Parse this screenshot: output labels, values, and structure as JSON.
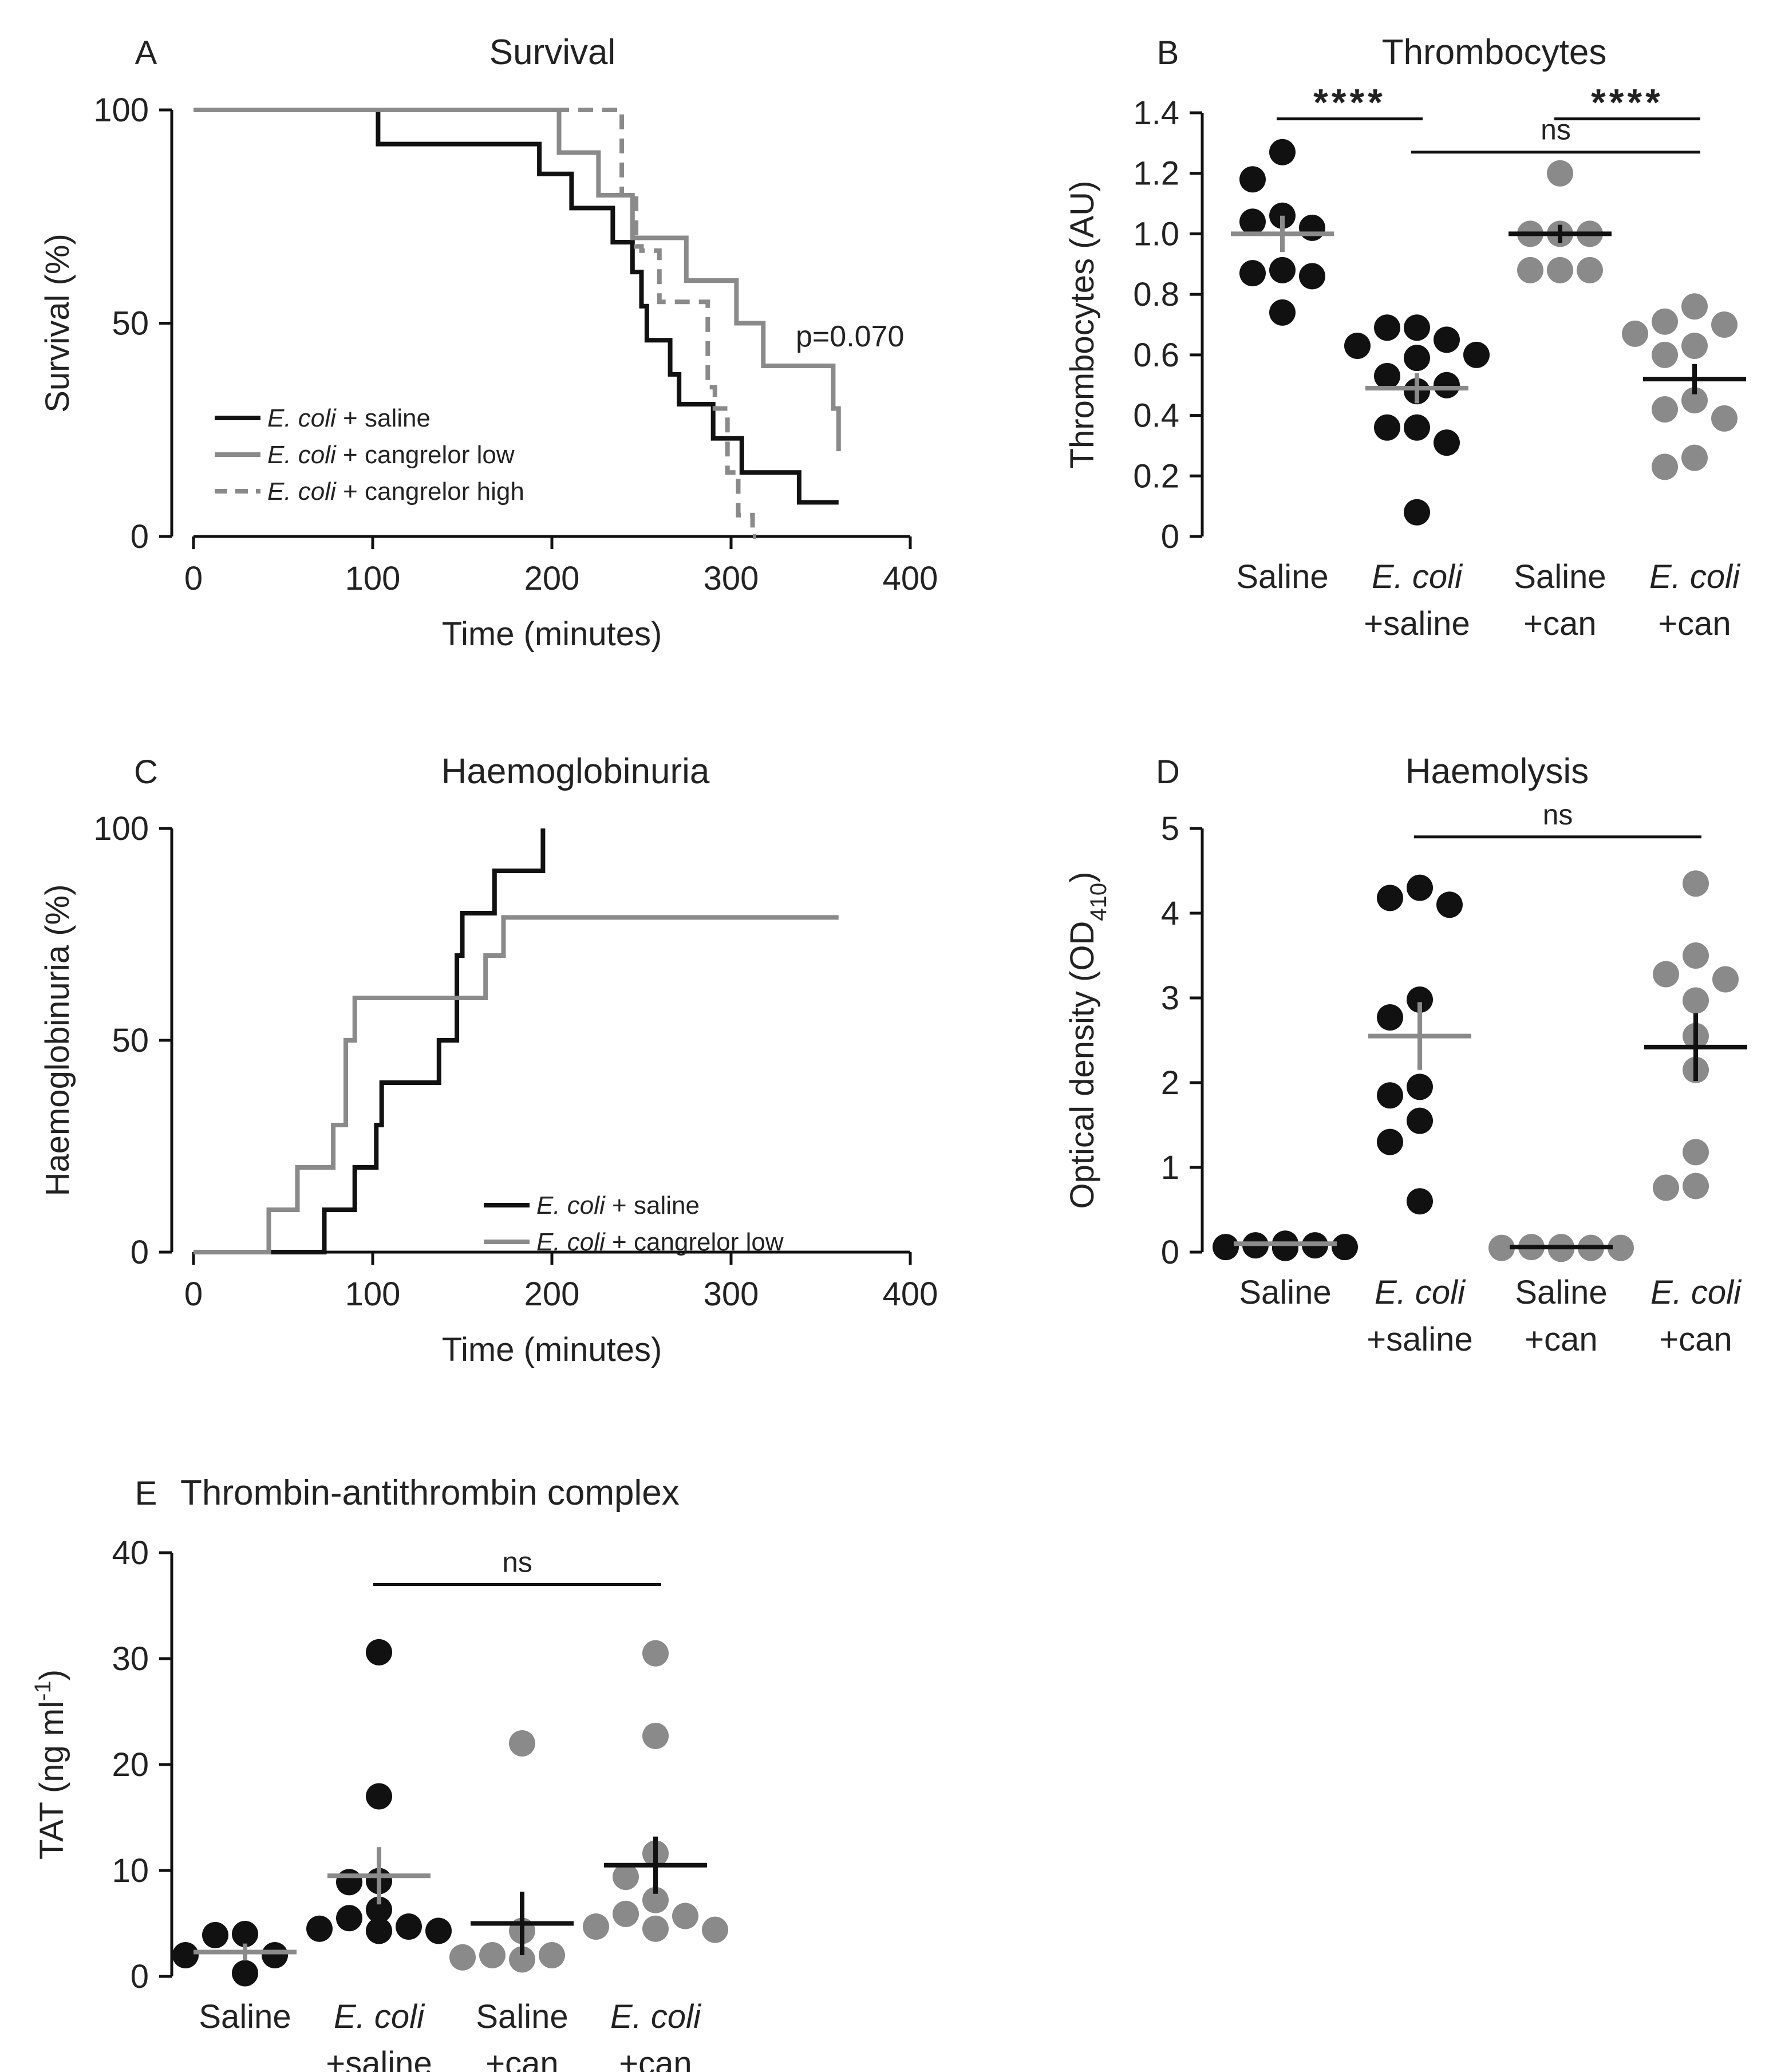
{
  "colors": {
    "black": "#111111",
    "grey": "#8a8a8a"
  },
  "chart_data": [
    {
      "id": "A",
      "letter": "A",
      "title": "Survival",
      "type": "line",
      "xlabel": "Time (minutes)",
      "ylabel": "Survival (%)",
      "xlim": [
        0,
        400
      ],
      "ylim": [
        0,
        100
      ],
      "xticks": [
        "0",
        "100",
        "200",
        "300",
        "400"
      ],
      "yticks": [
        "0",
        "50",
        "100"
      ],
      "annotation": "p=0.070",
      "legend_loc": "bottom-left",
      "series": [
        {
          "name_italic": "E. coli",
          "name_rest": " + saline",
          "color": "black",
          "dash": false,
          "x": [
            0,
            103,
            103,
            193,
            193,
            211,
            211,
            234,
            234,
            245,
            245,
            250,
            250,
            253,
            253,
            266,
            266,
            271,
            271,
            290,
            290,
            306,
            306,
            338,
            338,
            360
          ],
          "y": [
            100,
            100,
            92,
            92,
            85,
            85,
            77,
            77,
            69,
            69,
            62,
            62,
            54,
            54,
            46,
            46,
            38,
            38,
            31,
            31,
            23,
            23,
            15,
            15,
            8,
            8
          ]
        },
        {
          "name_italic": "E. coli",
          "name_rest": " + cangrelor low",
          "color": "grey",
          "dash": false,
          "x": [
            0,
            204,
            204,
            226,
            226,
            245,
            245,
            275,
            275,
            303,
            303,
            318,
            318,
            326,
            326,
            357,
            357,
            360,
            360
          ],
          "y": [
            100,
            100,
            90,
            90,
            80,
            80,
            70,
            70,
            60,
            60,
            50,
            50,
            40,
            40,
            40,
            40,
            30,
            30,
            20
          ]
        },
        {
          "name_italic": "E. coli",
          "name_rest": " + cangrelor high",
          "color": "grey",
          "dash": true,
          "x": [
            0,
            239,
            239,
            247,
            247,
            250,
            250,
            260,
            260,
            265,
            265,
            287,
            287,
            291,
            291,
            298,
            298,
            304,
            304,
            312,
            312,
            314
          ],
          "y": [
            100,
            100,
            80,
            80,
            68,
            68,
            67,
            67,
            55,
            55,
            55,
            55,
            35,
            35,
            30,
            30,
            15,
            15,
            5,
            5,
            0,
            0
          ]
        }
      ]
    },
    {
      "id": "B",
      "letter": "B",
      "title": "Thrombocytes",
      "type": "scatter",
      "ylabel": "Thrombocytes (AU)",
      "ylim": [
        0,
        1.4
      ],
      "yticks": [
        "0",
        "0.2",
        "0.4",
        "0.6",
        "0.8",
        "1.0",
        "1.2",
        "1.4"
      ],
      "categories": [
        {
          "italic": "",
          "rest": "Saline",
          "line2": ""
        },
        {
          "italic": "E. coli",
          "rest": "",
          "line2": "+saline"
        },
        {
          "italic": "",
          "rest": "Saline",
          "line2": "+can"
        },
        {
          "italic": "E. coli",
          "rest": "",
          "line2": "+can"
        }
      ],
      "groups": [
        {
          "color": "black",
          "bar_color": "grey",
          "mean": 1.0,
          "sem": 0.06,
          "points": [
            1.27,
            1.18,
            1.06,
            1.04,
            1.02,
            0.88,
            0.87,
            0.86,
            0.74
          ]
        },
        {
          "color": "black",
          "bar_color": "grey",
          "mean": 0.49,
          "sem": 0.05,
          "points": [
            0.69,
            0.69,
            0.65,
            0.63,
            0.6,
            0.59,
            0.53,
            0.5,
            0.48,
            0.36,
            0.36,
            0.31,
            0.08
          ]
        },
        {
          "color": "grey",
          "bar_color": "black",
          "mean": 1.0,
          "sem": 0.03,
          "points": [
            1.2,
            1.0,
            1.0,
            1.0,
            0.88,
            0.88,
            0.88
          ]
        },
        {
          "color": "grey",
          "bar_color": "black",
          "mean": 0.52,
          "sem": 0.05,
          "points": [
            0.76,
            0.71,
            0.7,
            0.67,
            0.63,
            0.6,
            0.45,
            0.42,
            0.39,
            0.26,
            0.23
          ]
        }
      ],
      "comparisons": [
        {
          "from": 0,
          "to": 1,
          "label": "****",
          "y": 1.38,
          "style": "sig"
        },
        {
          "from": 1,
          "to": 3,
          "label": "ns",
          "y": 1.27,
          "style": "ns"
        },
        {
          "from": 2,
          "to": 3,
          "label": "****",
          "y": 1.38,
          "style": "sig"
        }
      ]
    },
    {
      "id": "C",
      "letter": "C",
      "title": "Haemoglobinuria",
      "type": "line",
      "xlabel": "Time (minutes)",
      "ylabel": "Haemoglobinuria (%)",
      "xlim": [
        0,
        400
      ],
      "ylim": [
        0,
        100
      ],
      "xticks": [
        "0",
        "100",
        "200",
        "300",
        "400"
      ],
      "yticks": [
        "0",
        "50",
        "100"
      ],
      "legend_loc": "bottom-right",
      "series": [
        {
          "name_italic": "E. coli",
          "name_rest": " + saline",
          "color": "black",
          "dash": false,
          "x": [
            0,
            73,
            73,
            90,
            90,
            102,
            102,
            105,
            105,
            137,
            137,
            147,
            147,
            150,
            150,
            168,
            168,
            195,
            195
          ],
          "y": [
            0,
            0,
            10,
            10,
            20,
            20,
            30,
            30,
            40,
            40,
            50,
            50,
            70,
            70,
            80,
            80,
            90,
            90,
            100
          ]
        },
        {
          "name_italic": "E. coli",
          "name_rest": " + cangrelor low",
          "color": "grey",
          "dash": false,
          "x": [
            0,
            42,
            42,
            58,
            58,
            78,
            78,
            85,
            85,
            90,
            90,
            150,
            150,
            163,
            163,
            173,
            173,
            360
          ],
          "y": [
            0,
            0,
            10,
            10,
            20,
            20,
            30,
            30,
            50,
            50,
            60,
            60,
            60,
            60,
            70,
            70,
            79,
            79
          ]
        }
      ]
    },
    {
      "id": "D",
      "letter": "D",
      "title": "Haemolysis",
      "type": "scatter",
      "ylabel_main": "Optical density (OD",
      "ylabel_sub": "410",
      "ylabel_end": ")",
      "ylim": [
        0,
        5
      ],
      "yticks": [
        "0",
        "1",
        "2",
        "3",
        "4",
        "5"
      ],
      "categories": [
        {
          "italic": "",
          "rest": "Saline",
          "line2": ""
        },
        {
          "italic": "E. coli",
          "rest": "",
          "line2": "+saline"
        },
        {
          "italic": "",
          "rest": "Saline",
          "line2": "+can"
        },
        {
          "italic": "E. coli",
          "rest": "",
          "line2": "+can"
        }
      ],
      "groups": [
        {
          "color": "black",
          "bar_color": "grey",
          "mean": 0.1,
          "sem": 0.02,
          "points": [
            0.1,
            0.08,
            0.08,
            0.06,
            0.06,
            0.05,
            0.05,
            0.05
          ]
        },
        {
          "color": "black",
          "bar_color": "grey",
          "mean": 2.55,
          "sem": 0.4,
          "points": [
            4.3,
            4.18,
            4.1,
            2.98,
            2.77,
            1.95,
            1.85,
            1.55,
            1.3,
            0.6
          ]
        },
        {
          "color": "grey",
          "bar_color": "black",
          "mean": 0.06,
          "sem": 0.01,
          "points": [
            0.06,
            0.06,
            0.05,
            0.05,
            0.05,
            0.04,
            0.04,
            0.04
          ]
        },
        {
          "color": "grey",
          "bar_color": "black",
          "mean": 2.42,
          "sem": 0.4,
          "points": [
            4.35,
            3.5,
            3.28,
            3.22,
            2.97,
            2.55,
            2.15,
            1.18,
            0.78,
            0.76
          ]
        }
      ],
      "comparisons": [
        {
          "from": 1,
          "to": 3,
          "label": "ns",
          "y": 4.9,
          "style": "ns"
        }
      ]
    },
    {
      "id": "E",
      "letter": "E",
      "title": "Thrombin-antithrombin complex",
      "type": "scatter",
      "ylabel_main": "TAT (ng ml",
      "ylabel_sup": "-1",
      "ylabel_end": ")",
      "ylim": [
        0,
        40
      ],
      "yticks": [
        "0",
        "10",
        "20",
        "30",
        "40"
      ],
      "categories": [
        {
          "italic": "",
          "rest": "Saline",
          "line2": ""
        },
        {
          "italic": "E. coli",
          "rest": "",
          "line2": "+saline"
        },
        {
          "italic": "",
          "rest": "Saline",
          "line2": "+can"
        },
        {
          "italic": "E. coli",
          "rest": "",
          "line2": "+can"
        }
      ],
      "groups": [
        {
          "color": "black",
          "bar_color": "grey",
          "mean": 2.3,
          "sem": 0.8,
          "points": [
            4.0,
            3.9,
            2.0,
            2.0,
            0.3
          ]
        },
        {
          "color": "black",
          "bar_color": "grey",
          "mean": 9.5,
          "sem": 2.7,
          "points": [
            30.6,
            17.0,
            9.0,
            8.9,
            6.3,
            5.5,
            4.7,
            4.5,
            4.3,
            4.3
          ]
        },
        {
          "color": "grey",
          "bar_color": "black",
          "mean": 5.0,
          "sem": 3.0,
          "points": [
            22.0,
            4.3,
            2.0,
            2.0,
            1.8,
            1.6
          ]
        },
        {
          "color": "grey",
          "bar_color": "black",
          "mean": 10.5,
          "sem": 2.7,
          "points": [
            30.5,
            22.7,
            11.6,
            9.4,
            7.2,
            5.9,
            5.7,
            4.7,
            4.5,
            4.4
          ]
        }
      ],
      "comparisons": [
        {
          "from": 1,
          "to": 3,
          "label": "ns",
          "y": 37,
          "style": "ns"
        }
      ]
    }
  ]
}
